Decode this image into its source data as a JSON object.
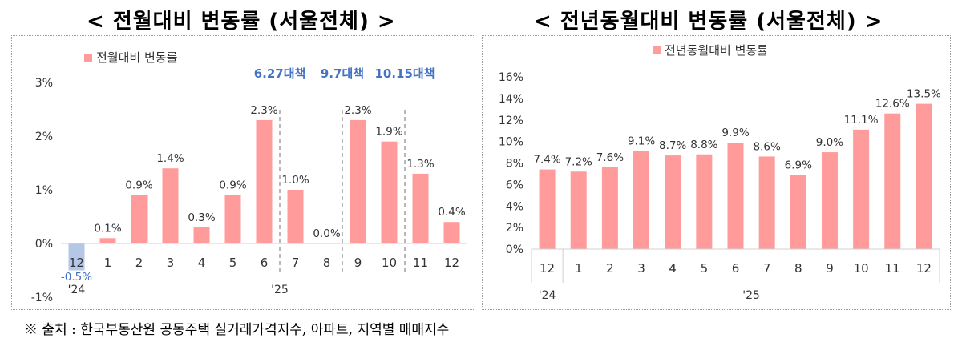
{
  "titles": {
    "left": "< 전월대비 변동률 (서울전체) >",
    "right": "< 전년동월대비 변동률 (서울전체) >"
  },
  "source": "※ 출처 : 한국부동산원 공동주택 실거래가격지수, 아파트, 지역별 매매지수",
  "chart_data": [
    {
      "type": "bar",
      "legend": "전월대비 변동률",
      "legend_position": "top-left",
      "categories": [
        "12",
        "1",
        "2",
        "3",
        "4",
        "5",
        "6",
        "7",
        "8",
        "9",
        "10",
        "11",
        "12"
      ],
      "year_labels": [
        "'24",
        "'25"
      ],
      "values": [
        -0.5,
        0.1,
        0.9,
        1.4,
        0.3,
        0.9,
        2.3,
        1.0,
        0.0,
        2.3,
        1.9,
        1.3,
        0.4
      ],
      "data_labels": [
        "-0.5%",
        "0.1%",
        "0.9%",
        "1.4%",
        "0.3%",
        "0.9%",
        "2.3%",
        "1.0%",
        "0.0%",
        "2.3%",
        "1.9%",
        "1.3%",
        "0.4%"
      ],
      "ylim": [
        -1,
        3
      ],
      "yticks": [
        -1,
        0,
        1,
        2,
        3
      ],
      "ytick_labels": [
        "-1%",
        "0%",
        "1%",
        "2%",
        "3%"
      ],
      "grid": false,
      "bar_color": "#ff9b9b",
      "highlight_color": "#b4c7e7",
      "highlight_index": 0,
      "annotation_color": "#4472c4",
      "annotations": [
        {
          "label": "6.27대책",
          "after_index": 6
        },
        {
          "label": "9.7대책",
          "after_index": 8
        },
        {
          "label": "10.15대책",
          "after_index": 10
        }
      ]
    },
    {
      "type": "bar",
      "legend": "전년동월대비 변동률",
      "legend_position": "top-center",
      "categories": [
        "12",
        "1",
        "2",
        "3",
        "4",
        "5",
        "6",
        "7",
        "8",
        "9",
        "10",
        "11",
        "12"
      ],
      "year_labels": [
        "'24",
        "'25"
      ],
      "values": [
        7.4,
        7.2,
        7.6,
        9.1,
        8.7,
        8.8,
        9.9,
        8.6,
        6.9,
        9.0,
        11.1,
        12.6,
        13.5
      ],
      "data_labels": [
        "7.4%",
        "7.2%",
        "7.6%",
        "9.1%",
        "8.7%",
        "8.8%",
        "9.9%",
        "8.6%",
        "6.9%",
        "9.0%",
        "11.1%",
        "12.6%",
        "13.5%"
      ],
      "ylim": [
        0,
        16
      ],
      "yticks": [
        0,
        2,
        4,
        6,
        8,
        10,
        12,
        14,
        16
      ],
      "ytick_labels": [
        "0%",
        "2%",
        "4%",
        "6%",
        "8%",
        "10%",
        "12%",
        "14%",
        "16%"
      ],
      "grid": false,
      "bar_color": "#ff9b9b"
    }
  ]
}
